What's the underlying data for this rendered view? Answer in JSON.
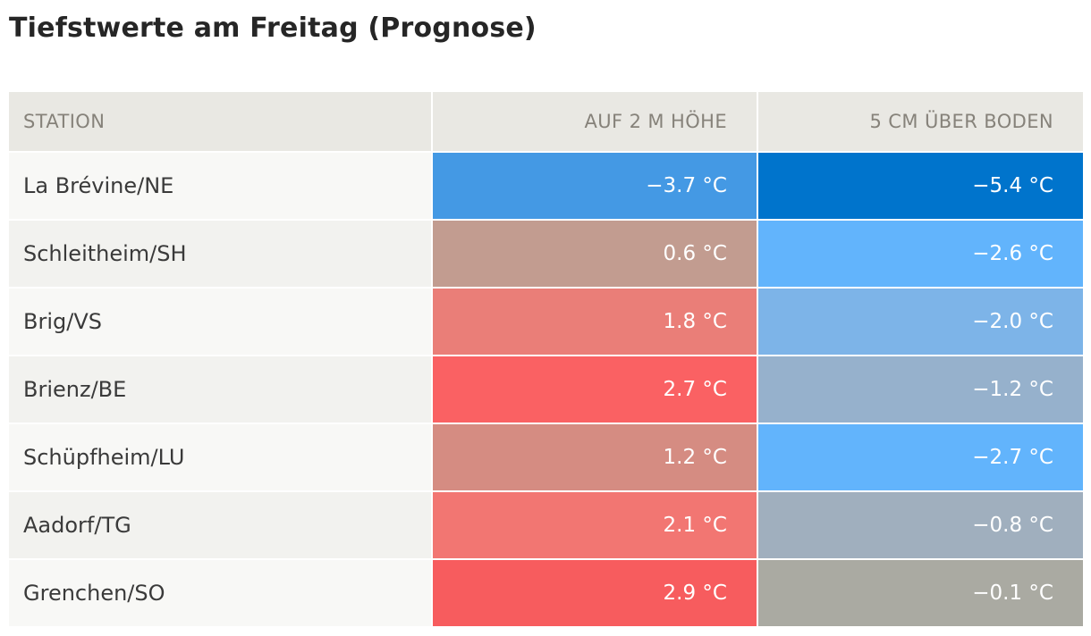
{
  "chart_data": {
    "type": "table",
    "title": "Tiefstwerte am Freitag (Prognose)",
    "columns": [
      "STATION",
      "AUF 2 M HÖHE",
      "5 CM ÜBER BODEN"
    ],
    "unit": "°C",
    "rows": [
      {
        "station": "La Brévine/NE",
        "h2m": "−3.7 °C",
        "g5cm": "−5.4 °C",
        "h2m_value": -3.7,
        "g5cm_value": -5.4,
        "h2m_color": "#4499e4",
        "g5cm_color": "#0074cc"
      },
      {
        "station": "Schleitheim/SH",
        "h2m": "0.6 °C",
        "g5cm": "−2.6 °C",
        "h2m_value": 0.6,
        "g5cm_value": -2.6,
        "h2m_color": "#c29c90",
        "g5cm_color": "#62b4fc"
      },
      {
        "station": "Brig/VS",
        "h2m": "1.8 °C",
        "g5cm": "−2.0 °C",
        "h2m_value": 1.8,
        "g5cm_value": -2.0,
        "h2m_color": "#ea7e78",
        "g5cm_color": "#7db4e8"
      },
      {
        "station": "Brienz/BE",
        "h2m": "2.7 °C",
        "g5cm": "−1.2 °C",
        "h2m_value": 2.7,
        "g5cm_value": -1.2,
        "h2m_color": "#fa6163",
        "g5cm_color": "#96b1cc"
      },
      {
        "station": "Schüpfheim/LU",
        "h2m": "1.2 °C",
        "g5cm": "−2.7 °C",
        "h2m_value": 1.2,
        "g5cm_value": -2.7,
        "h2m_color": "#d58c82",
        "g5cm_color": "#62b4fc"
      },
      {
        "station": "Aadorf/TG",
        "h2m": "2.1 °C",
        "g5cm": "−0.8 °C",
        "h2m_value": 2.1,
        "g5cm_value": -0.8,
        "h2m_color": "#f27672",
        "g5cm_color": "#a0afbe"
      },
      {
        "station": "Grenchen/SO",
        "h2m": "2.9 °C",
        "g5cm": "−0.1 °C",
        "h2m_value": 2.9,
        "g5cm_value": -0.1,
        "h2m_color": "#f75c5e",
        "g5cm_color": "#aaaaa2"
      }
    ]
  }
}
